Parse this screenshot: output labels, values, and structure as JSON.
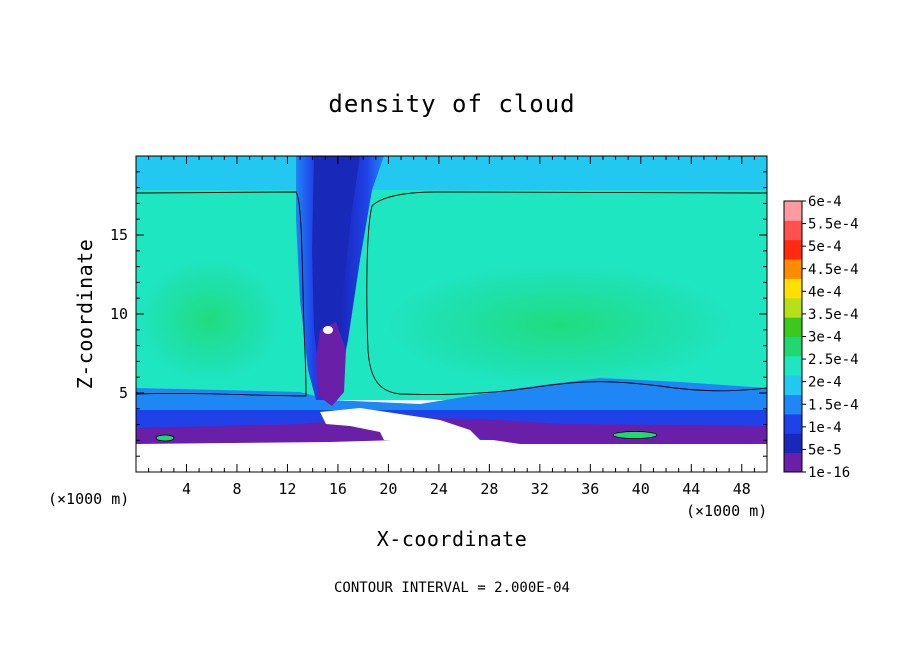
{
  "chart_data": {
    "type": "heatmap",
    "title": "density of cloud",
    "xlabel": "X-coordinate",
    "ylabel": "Z-coordinate",
    "x_unit_label": "(×1000 m)",
    "y_unit_label": "(×1000 m)",
    "xlim": [
      0,
      50
    ],
    "ylim": [
      0,
      20
    ],
    "x_ticks": [
      4,
      8,
      12,
      16,
      20,
      24,
      28,
      32,
      36,
      40,
      44,
      48
    ],
    "y_ticks": [
      5,
      10,
      15
    ],
    "footer_note": "CONTOUR INTERVAL = 2.000E-04",
    "colorbar": {
      "labels": [
        "1e-16",
        "5e-5",
        "1e-4",
        "1.5e-4",
        "2e-4",
        "2.5e-4",
        "3e-4",
        "3.5e-4",
        "4e-4",
        "4.5e-4",
        "5e-4",
        "5.5e-4",
        "6e-4"
      ],
      "colors": [
        "#6a1fa8",
        "#1828b8",
        "#2040e8",
        "#1f86f5",
        "#22c8f0",
        "#1ee6c0",
        "#1fd872",
        "#3cc81e",
        "#b6e01a",
        "#ffe000",
        "#ff8c00",
        "#ff2a10",
        "#ff5050",
        "#ff9aa0"
      ]
    },
    "field_description_values": {
      "cloud_layer_z_range": [
        2,
        17.7
      ],
      "cloud_free_below_z": 1.8,
      "core_value_range": [
        0.00025,
        0.0003
      ],
      "column_x_range": [
        13,
        19
      ]
    }
  }
}
